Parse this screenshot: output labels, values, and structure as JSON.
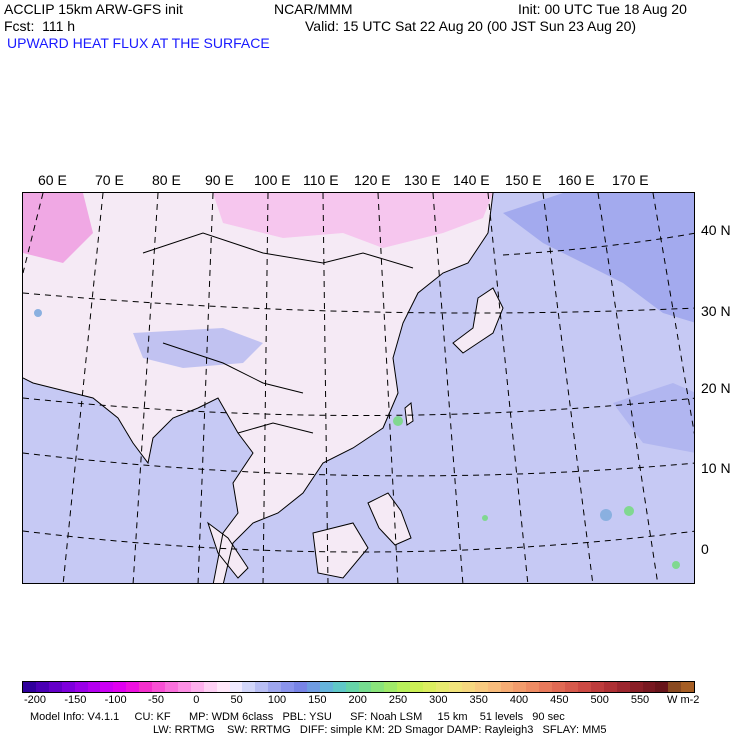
{
  "header": {
    "model": "ACCLIP 15km ARW-GFS init",
    "org": "NCAR/MMM",
    "init": "Init: 00 UTC Tue 18 Aug 20",
    "fcst": "Fcst:  111 h",
    "valid": "Valid: 15 UTC Sat 22 Aug 20 (00 JST Sun 23 Aug 20)",
    "field": "UPWARD HEAT FLUX AT THE SURFACE"
  },
  "lon_labels": [
    "60 E",
    "70 E",
    "80 E",
    "90 E",
    "100 E",
    "110 E",
    "120 E",
    "130 E",
    "140 E",
    "150 E",
    "160 E",
    "170 E"
  ],
  "lat_labels": [
    "40 N",
    "30 N",
    "20 N",
    "10 N",
    "0"
  ],
  "colorbar": {
    "ticks": [
      "-200",
      "-150",
      "-100",
      "-50",
      "0",
      "50",
      "100",
      "150",
      "200",
      "250",
      "300",
      "350",
      "400",
      "450",
      "500",
      "550"
    ],
    "unit": "W m-2",
    "colors": [
      "#30009c",
      "#4a00b4",
      "#6400c8",
      "#7e00dc",
      "#9a00e8",
      "#b400f0",
      "#cc00f4",
      "#e000f0",
      "#ee10e0",
      "#f430cc",
      "#f850d4",
      "#fa70dc",
      "#fc90e4",
      "#fdb0ec",
      "#fed0f4",
      "#ffe8fa",
      "#f0eaff",
      "#d2d6fa",
      "#b8bef4",
      "#9ea6ee",
      "#8a94ec",
      "#7884e6",
      "#6f9ce2",
      "#66b4dc",
      "#60c8c8",
      "#66d4a8",
      "#76dc90",
      "#8ae47c",
      "#a0ea6a",
      "#b8f05c",
      "#ccf056",
      "#dcee60",
      "#e8ea70",
      "#f2e47c",
      "#f6d880",
      "#f8ca80",
      "#f8bc7c",
      "#f6ac74",
      "#f29c6c",
      "#ee8c64",
      "#e87a5c",
      "#e06a54",
      "#d65a4c",
      "#cc4a44",
      "#be3c3c",
      "#ae3034",
      "#9c262e",
      "#8a1e26",
      "#781820",
      "#68141a",
      "#8a4a20",
      "#a65e24"
    ]
  },
  "model_info": {
    "line1": "Model Info: V4.1.1     CU: KF      MP: WDM 6class   PBL: YSU      SF: Noah LSM     15 km    51 levels   90 sec",
    "line2": "LW: RRTMG    SW: RRTMG   DIFF: simple KM: 2D Smagor DAMP: Rayleigh3   SFLAY: MM5"
  }
}
